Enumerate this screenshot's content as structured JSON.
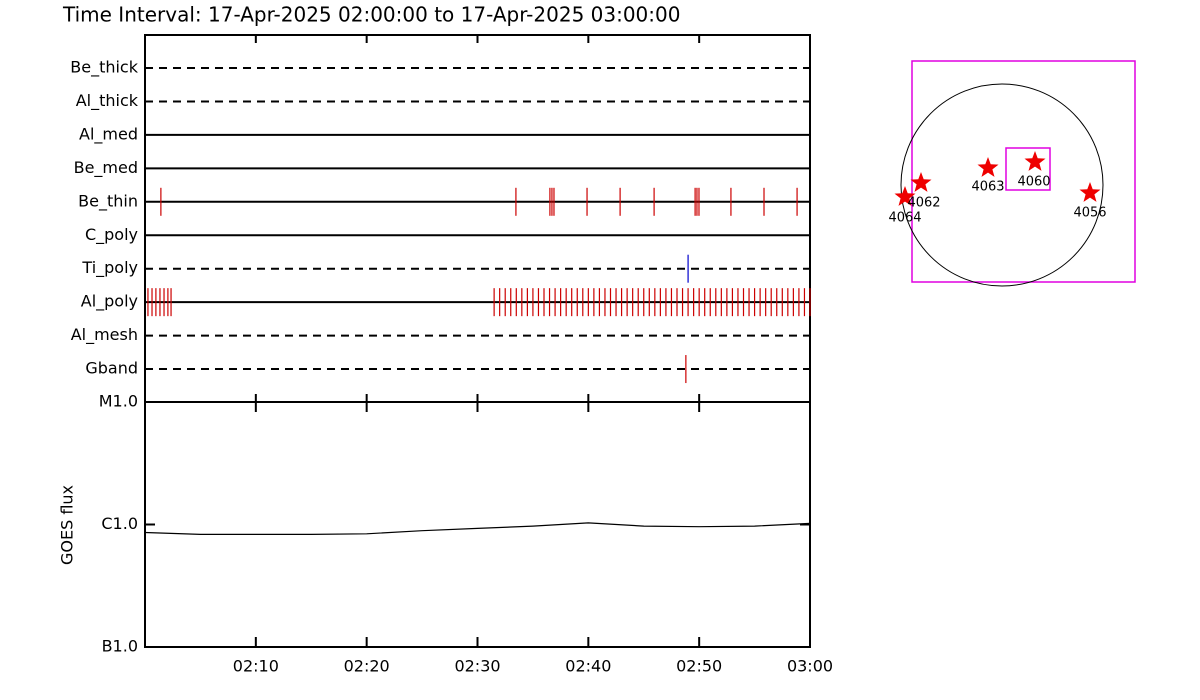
{
  "title": "Time Interval: 17-Apr-2025 02:00:00 to 17-Apr-2025 03:00:00",
  "chart_data": [
    {
      "type": "timeline",
      "xlim": [
        "02:00",
        "03:00"
      ],
      "xticks": [
        "02:10",
        "02:20",
        "02:30",
        "02:40",
        "02:50",
        "03:00"
      ],
      "rows": [
        {
          "name": "Be_thick",
          "line": "dashed",
          "events": []
        },
        {
          "name": "Al_thick",
          "line": "dashed",
          "events": []
        },
        {
          "name": "Al_med",
          "line": "solid",
          "events": []
        },
        {
          "name": "Be_med",
          "line": "solid",
          "events": []
        },
        {
          "name": "Be_thin",
          "line": "solid",
          "color": "#cc0000",
          "events": [
            "02:01:26",
            "02:33:28",
            "02:36:32",
            "02:36:43",
            "02:36:54",
            "02:39:53",
            "02:42:52",
            "02:45:56",
            "02:49:38",
            "02:49:48",
            "02:49:59",
            "02:52:52",
            "02:55:51",
            "02:58:50"
          ]
        },
        {
          "name": "C_poly",
          "line": "solid",
          "events": []
        },
        {
          "name": "Ti_poly",
          "line": "dashed",
          "color": "#0000cc",
          "events": [
            "02:49:00"
          ]
        },
        {
          "name": "Al_poly",
          "line": "solid",
          "color": "#cc0000",
          "events": [
            "02:00:16",
            "02:00:38",
            "02:00:59",
            "02:01:21",
            "02:01:43",
            "02:02:04",
            "02:02:21",
            "02:31:30",
            "02:32:00",
            "02:32:30",
            "02:33:00",
            "02:33:30",
            "02:34:00",
            "02:34:30",
            "02:35:00",
            "02:35:30",
            "02:36:00",
            "02:36:30",
            "02:37:00",
            "02:37:30",
            "02:38:00",
            "02:38:30",
            "02:39:00",
            "02:39:30",
            "02:40:00",
            "02:40:30",
            "02:41:00",
            "02:41:30",
            "02:42:00",
            "02:42:30",
            "02:43:00",
            "02:43:30",
            "02:44:00",
            "02:44:30",
            "02:45:00",
            "02:45:30",
            "02:46:00",
            "02:46:30",
            "02:47:00",
            "02:47:30",
            "02:48:00",
            "02:48:30",
            "02:49:00",
            "02:49:30",
            "02:50:00",
            "02:50:30",
            "02:51:00",
            "02:51:30",
            "02:52:00",
            "02:52:30",
            "02:53:00",
            "02:53:30",
            "02:54:00",
            "02:54:30",
            "02:55:00",
            "02:55:30",
            "02:56:00",
            "02:56:30",
            "02:57:00",
            "02:57:30",
            "02:58:00",
            "02:58:30",
            "02:59:00",
            "02:59:30",
            "03:00:00"
          ]
        },
        {
          "name": "Al_mesh",
          "line": "dashed",
          "events": []
        },
        {
          "name": "Gband",
          "line": "dashed",
          "color": "#cc0000",
          "events": [
            "02:48:48"
          ]
        }
      ]
    },
    {
      "type": "line",
      "ylabel": "GOES flux",
      "log": true,
      "color": "#000000",
      "xlim": [
        "02:00",
        "03:00"
      ],
      "xticks": [
        "02:10",
        "02:20",
        "02:30",
        "02:40",
        "02:50",
        "03:00"
      ],
      "ylim": [
        1e-07,
        1e-05
      ],
      "yticks": [
        {
          "value": 1e-07,
          "label": "B1.0"
        },
        {
          "value": 1e-06,
          "label": "C1.0"
        },
        {
          "value": 1e-05,
          "label": "M1.0"
        }
      ],
      "x": [
        "02:00",
        "02:05",
        "02:10",
        "02:15",
        "02:20",
        "02:25",
        "02:30",
        "02:35",
        "02:40",
        "02:45",
        "02:50",
        "02:55",
        "03:00"
      ],
      "values": [
        8.6e-07,
        8.3e-07,
        8.3e-07,
        8.3e-07,
        8.4e-07,
        8.9e-07,
        9.3e-07,
        9.7e-07,
        1.03e-06,
        9.7e-07,
        9.6e-07,
        9.7e-07,
        1.02e-06
      ]
    }
  ],
  "map": {
    "regions": [
      "4064",
      "4062",
      "4063",
      "4060",
      "4056"
    ]
  }
}
